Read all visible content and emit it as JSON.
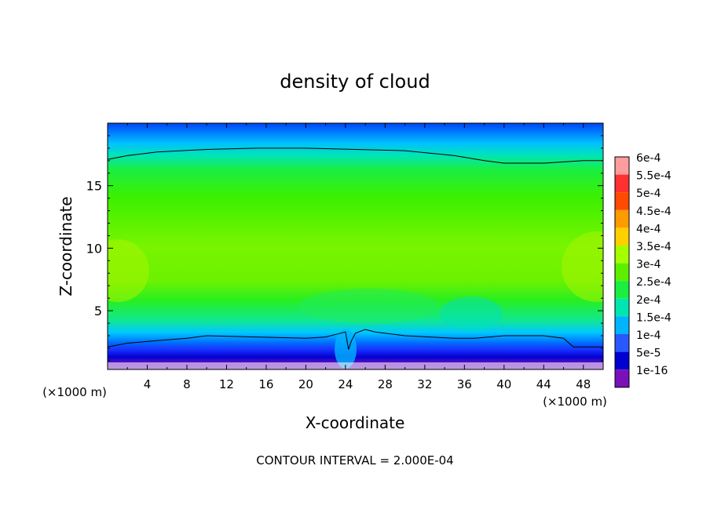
{
  "chart_data": {
    "type": "heatmap",
    "title": "density of cloud",
    "xlabel": "X-coordinate",
    "ylabel": "Z-coordinate",
    "x_unit_left": "(×1000 m)",
    "x_unit_right": "(×1000 m)",
    "xlim": [
      0,
      50
    ],
    "ylim": [
      0.3,
      20
    ],
    "x_ticks": [
      4,
      8,
      12,
      16,
      20,
      24,
      28,
      32,
      36,
      40,
      44,
      48
    ],
    "y_ticks": [
      5,
      10,
      15
    ],
    "footer": "CONTOUR INTERVAL = 2.000E-04",
    "legend_position": "right",
    "colorbar": {
      "labels": [
        "6e-4",
        "5.5e-4",
        "5e-4",
        "4.5e-4",
        "4e-4",
        "3.5e-4",
        "3e-4",
        "2.5e-4",
        "2e-4",
        "1.5e-4",
        "1e-4",
        "5e-5",
        "1e-16"
      ],
      "values": [
        0.0006,
        0.00055,
        0.0005,
        0.00045,
        0.0004,
        0.00035,
        0.0003,
        0.00025,
        0.0002,
        0.00015,
        0.0001,
        5e-05,
        1e-16
      ],
      "colors": [
        "#ff9c9c",
        "#ff3030",
        "#ff4a00",
        "#ff9a00",
        "#ffd000",
        "#a6ff00",
        "#5cf000",
        "#1aee40",
        "#00e6b0",
        "#00b4ff",
        "#2a58ff",
        "#0000d0",
        "#7a10b8"
      ]
    },
    "contour_lines": [
      {
        "level": 0.0002,
        "upper": {
          "x": [
            0,
            2,
            5,
            10,
            15,
            20,
            25,
            30,
            35,
            38,
            40,
            44,
            48,
            50
          ],
          "y": [
            17.1,
            17.4,
            17.7,
            17.9,
            18.0,
            18.0,
            17.9,
            17.8,
            17.4,
            17.0,
            16.8,
            16.8,
            17.0,
            17.0
          ]
        },
        "lower": {
          "x": [
            0,
            2,
            5,
            8,
            10,
            15,
            20,
            22,
            23.5,
            24,
            24.3,
            24.6,
            25,
            26,
            27,
            30,
            35,
            37,
            40,
            44,
            46,
            47,
            50
          ],
          "y": [
            2.1,
            2.4,
            2.6,
            2.8,
            3.0,
            2.9,
            2.8,
            2.9,
            3.2,
            3.3,
            1.9,
            2.6,
            3.2,
            3.5,
            3.3,
            3.0,
            2.8,
            2.8,
            3.0,
            3.0,
            2.8,
            2.1,
            2.1
          ]
        }
      }
    ]
  }
}
